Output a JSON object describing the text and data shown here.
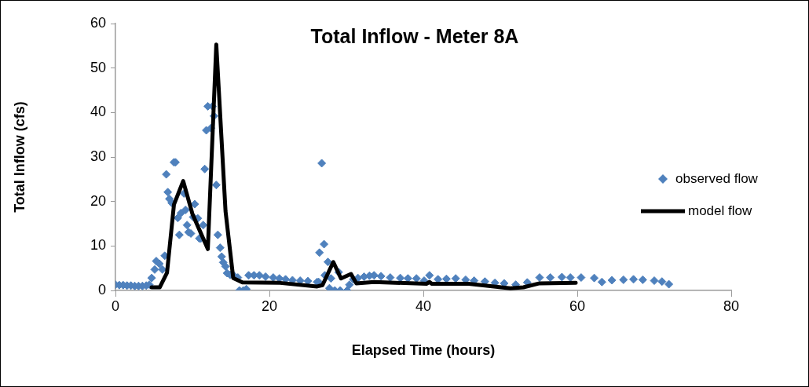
{
  "chart_data": {
    "type": "scatter",
    "title": "Total Inflow - Meter 8A",
    "xlabel": "Elapsed Time (hours)",
    "ylabel": "Total Inflow (cfs)",
    "xlim": [
      0,
      80
    ],
    "xticks": [
      0,
      20,
      40,
      60,
      80
    ],
    "ylim": [
      0,
      60
    ],
    "yticks": [
      0,
      10,
      20,
      30,
      40,
      50,
      60
    ],
    "grid": false,
    "legend": "right",
    "marker": "diamond",
    "series": [
      {
        "name": "observed flow",
        "type": "scatter",
        "color": "#4f81bd",
        "x": [
          0,
          0.5,
          1,
          1.5,
          2,
          2.5,
          3,
          3.5,
          4,
          4.4,
          4.7,
          5.1,
          5.3,
          5.7,
          6.1,
          6.4,
          6.6,
          6.8,
          7.0,
          7.3,
          7.6,
          7.8,
          8.1,
          8.3,
          8.5,
          8.9,
          9.1,
          9.3,
          9.5,
          9.8,
          10.1,
          10.3,
          10.7,
          10.9,
          11.1,
          11.4,
          11.6,
          11.8,
          12.0,
          12.4,
          12.6,
          12.8,
          13.1,
          13.3,
          13.6,
          13.8,
          14.0,
          14.3,
          14.5,
          14.9,
          15.4,
          15.9,
          16.1,
          16.6,
          17.0,
          17.3,
          18.0,
          18.7,
          19.5,
          20.5,
          21.3,
          22.1,
          23.0,
          24.0,
          25.0,
          26.2,
          26.4,
          26.5,
          26.8,
          27.1,
          27.2,
          27.6,
          27.8,
          28.0,
          28.5,
          29.0,
          29.2,
          30.1,
          30.4,
          30.9,
          31.5,
          32.3,
          33.0,
          33.6,
          34.5,
          35.7,
          37.0,
          38.0,
          39.1,
          40.1,
          40.8,
          41.9,
          43.0,
          44.2,
          45.5,
          46.6,
          48.0,
          49.3,
          50.5,
          52.0,
          53.5,
          55.1,
          56.5,
          58.0,
          59.1,
          60.5,
          62.2,
          63.2,
          64.5,
          66.0,
          67.3,
          68.5,
          70.0,
          71.0,
          71.9
        ],
        "values": [
          1.3,
          1.2,
          1.2,
          1.1,
          1.1,
          1.0,
          1.0,
          1.0,
          1.1,
          1.3,
          2.8,
          4.7,
          6.6,
          6.0,
          4.7,
          7.8,
          26.1,
          22.1,
          20.6,
          19.7,
          28.8,
          28.8,
          16.3,
          12.5,
          17.4,
          21.8,
          18.1,
          14.7,
          13.1,
          12.8,
          16.5,
          19.4,
          16.2,
          11.7,
          11.7,
          14.7,
          27.3,
          36.0,
          41.4,
          36.5,
          41.4,
          39.2,
          23.7,
          12.5,
          9.6,
          7.6,
          6.3,
          5.4,
          3.9,
          3.5,
          3.3,
          2.9,
          0,
          0,
          0.3,
          3.4,
          3.4,
          3.4,
          3.1,
          2.9,
          2.7,
          2.5,
          2.3,
          2.2,
          2.1,
          1.9,
          1.9,
          8.5,
          28.6,
          10.4,
          3.4,
          6.4,
          0.5,
          2.7,
          0,
          4.1,
          0,
          0,
          1.3,
          2.5,
          2.8,
          3.1,
          3.3,
          3.4,
          3.2,
          2.9,
          2.8,
          2.7,
          2.7,
          2.2,
          3.4,
          2.5,
          2.6,
          2.7,
          2.4,
          2.2,
          2.0,
          1.7,
          1.6,
          1.3,
          1.8,
          2.9,
          2.9,
          3.0,
          2.9,
          2.9,
          2.8,
          1.9,
          2.3,
          2.4,
          2.5,
          2.4,
          2.2,
          2.0,
          1.4
        ]
      },
      {
        "name": "model flow",
        "type": "line",
        "marker": "none",
        "color": "#000000",
        "x": [
          4.7,
          5.75,
          6.7,
          7.6,
          8.8,
          10.0,
          12.0,
          13.1,
          14.3,
          15.3,
          16.5,
          21.4,
          26.2,
          26.9,
          28.3,
          29.3,
          30.6,
          31.3,
          33.6,
          40.4,
          40.8,
          41.1,
          45.9,
          51.3,
          53.0,
          55.1,
          59.8
        ],
        "values": [
          0.7,
          0.7,
          4.0,
          19.3,
          24.6,
          17.2,
          9.3,
          55.3,
          17.8,
          2.8,
          1.8,
          1.7,
          0.9,
          1.2,
          6.4,
          2.7,
          3.7,
          1.6,
          1.9,
          1.5,
          1.9,
          1.5,
          1.5,
          0.5,
          0.7,
          1.6,
          1.7
        ]
      }
    ]
  }
}
